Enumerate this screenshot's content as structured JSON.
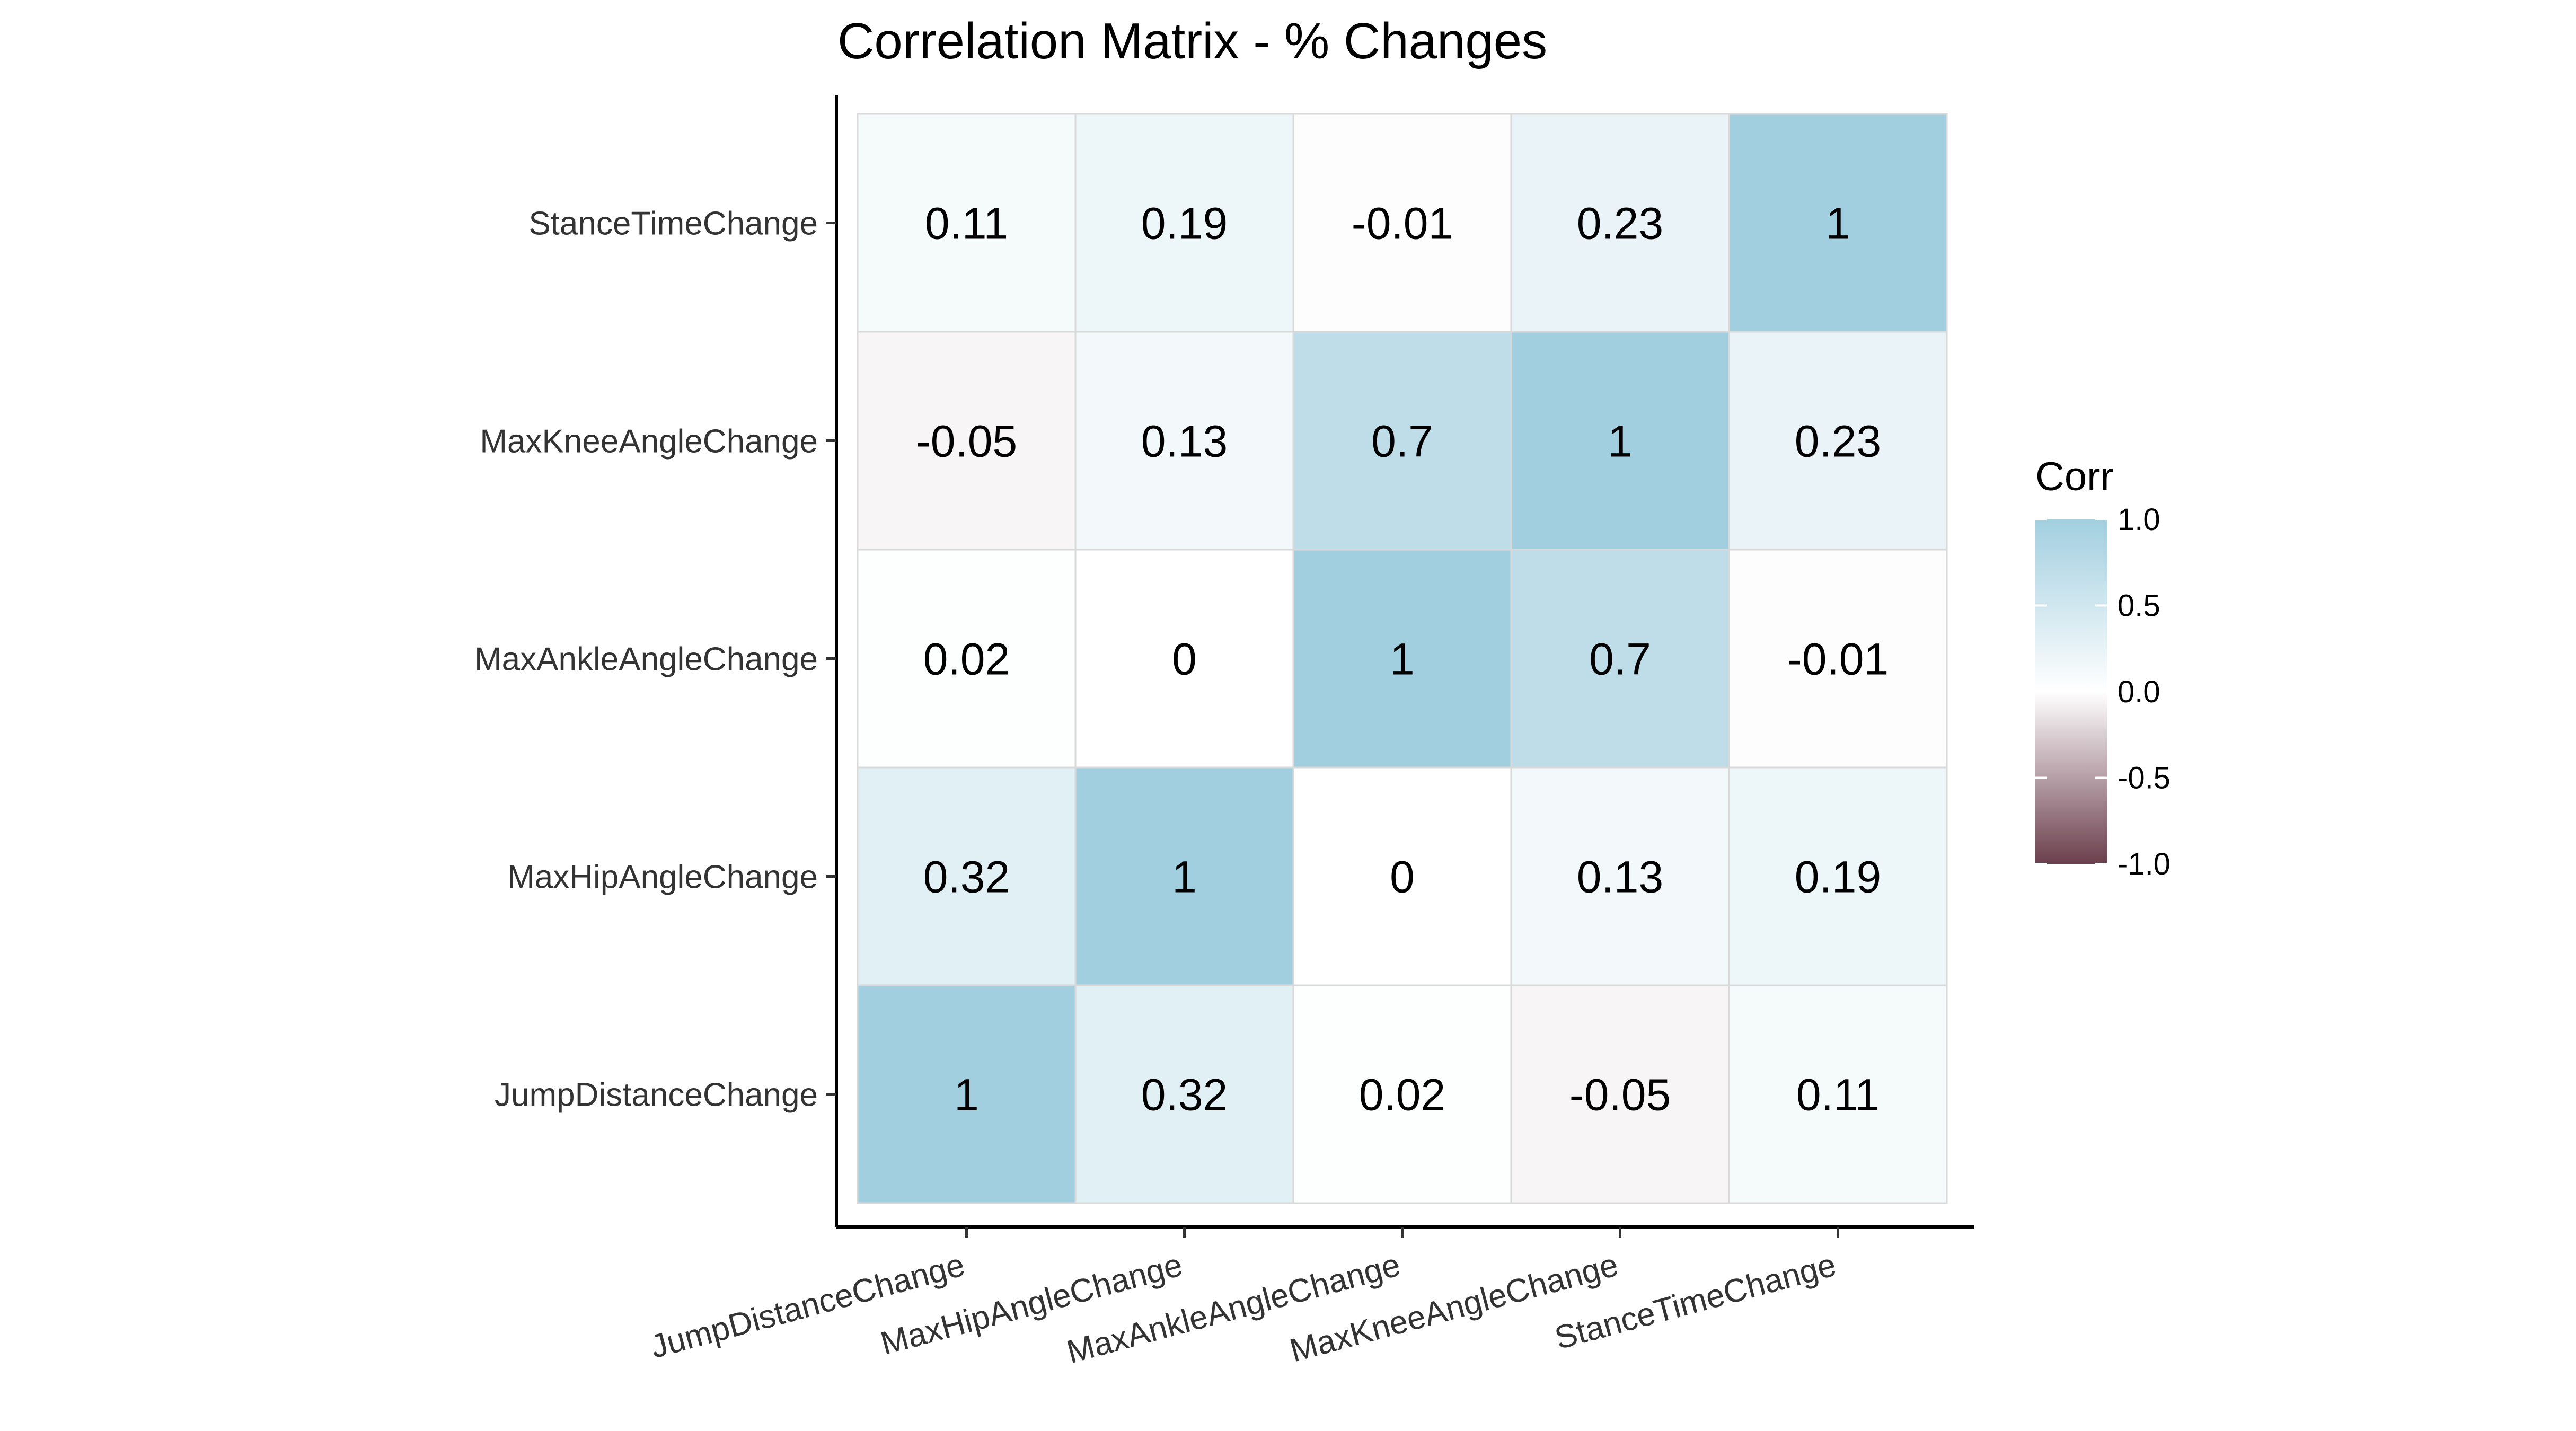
{
  "chart_data": {
    "type": "heatmap",
    "title": "Correlation Matrix - % Changes",
    "x_categories": [
      "JumpDistanceChange",
      "MaxHipAngleChange",
      "MaxAnkleAngleChange",
      "MaxKneeAngleChange",
      "StanceTimeChange"
    ],
    "y_categories": [
      "JumpDistanceChange",
      "MaxHipAngleChange",
      "MaxAnkleAngleChange",
      "MaxKneeAngleChange",
      "StanceTimeChange"
    ],
    "values": [
      [
        1,
        0.32,
        0.02,
        -0.05,
        0.11
      ],
      [
        0.32,
        1,
        0,
        0.13,
        0.19
      ],
      [
        0.02,
        0,
        1,
        0.7,
        -0.01
      ],
      [
        -0.05,
        0.13,
        0.7,
        1,
        0.23
      ],
      [
        0.11,
        0.19,
        -0.01,
        0.23,
        1
      ]
    ],
    "labels": [
      [
        "1",
        "0.32",
        "0.02",
        "-0.05",
        "0.11"
      ],
      [
        "0.32",
        "1",
        "0",
        "0.13",
        "0.19"
      ],
      [
        "0.02",
        "0",
        "1",
        "0.7",
        "-0.01"
      ],
      [
        "-0.05",
        "0.13",
        "0.7",
        "1",
        "0.23"
      ],
      [
        "0.11",
        "0.19",
        "-0.01",
        "0.23",
        "1"
      ]
    ],
    "legend": {
      "title": "Corr",
      "ticks": [
        "1.0",
        "0.5",
        "0.0",
        "-0.5",
        "-1.0"
      ],
      "tick_values": [
        1.0,
        0.5,
        0.0,
        -0.5,
        -1.0
      ],
      "range": [
        -1,
        1
      ],
      "placement": "right"
    },
    "colors": {
      "high": "#A2CFDF",
      "mid": "#FFFFFF",
      "low": "#6B3F4D",
      "cell_border": "#D9D9D9"
    },
    "x_tick_rotation_deg": -15,
    "grid": false
  }
}
